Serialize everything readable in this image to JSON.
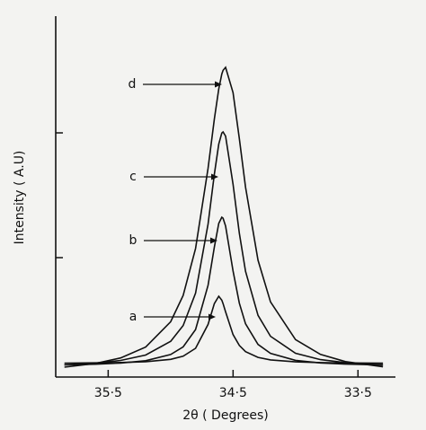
{
  "chart_data": {
    "type": "line",
    "x_label": "2θ ( Degrees)",
    "y_label": "Intensity ( A.U)",
    "x": [
      35.85,
      35.6,
      35.4,
      35.2,
      35.0,
      34.9,
      34.8,
      34.7,
      34.65,
      34.615,
      34.59,
      34.58,
      34.56,
      34.5,
      34.45,
      34.4,
      34.3,
      34.2,
      34.0,
      33.8,
      33.6,
      33.3
    ],
    "series": [
      {
        "name": "a",
        "color": "#111111",
        "values": [
          15.5,
          15.8,
          16.2,
          17.1,
          19.7,
          23.2,
          32.0,
          58.6,
          81.8,
          90,
          85.6,
          81.8,
          72.6,
          47.3,
          35.2,
          28.3,
          21.9,
          19.1,
          16.9,
          16.1,
          15.7,
          15.4
        ]
      },
      {
        "name": "b",
        "color": "#111111",
        "values": [
          13.5,
          14.3,
          15.6,
          18.2,
          25.1,
          33.6,
          52.9,
          102.2,
          144.8,
          171.1,
          178,
          176.9,
          168.2,
          118.2,
          82.3,
          59.3,
          36.3,
          26.4,
          18.6,
          15.7,
          14.4,
          13.4
        ]
      },
      {
        "name": "c",
        "color": "#111111",
        "values": [
          13.6,
          15.6,
          18.5,
          24.5,
          39.8,
          57.4,
          93.5,
          170.4,
          225.9,
          259.4,
          271.8,
          273,
          268.4,
          214.8,
          160.2,
          117.8,
          68.7,
          45.4,
          26.5,
          19.4,
          16.0,
          13.6
        ]
      },
      {
        "name": "d",
        "color": "#111111",
        "values": [
          11.0,
          15.2,
          21.3,
          33.4,
          61.6,
          90.9,
          143.2,
          232.5,
          287.4,
          320.9,
          337.5,
          341.6,
          345,
          316.8,
          265.6,
          211.5,
          130.1,
          83.7,
          41.7,
          25.2,
          17.2,
          11.4
        ]
      }
    ],
    "xlim": [
      35.92,
      33.2
    ],
    "xticks": [
      {
        "value": 35.5,
        "label": "35·5"
      },
      {
        "value": 34.5,
        "label": "34·5"
      },
      {
        "value": 33.5,
        "label": "33·5"
      }
    ],
    "ylim": [
      0,
      400
    ],
    "yticks": [
      133,
      272
    ],
    "grid": false
  }
}
